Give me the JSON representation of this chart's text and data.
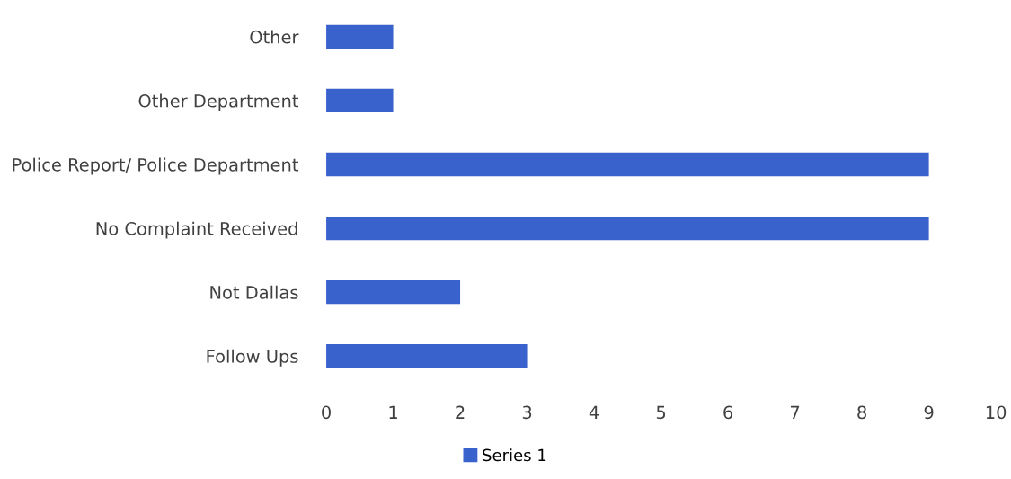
{
  "chart_data": {
    "type": "bar",
    "orientation": "horizontal",
    "categories": [
      "Other",
      "Other Department",
      "Police Report/ Police Department",
      "No Complaint Received",
      "Not Dallas",
      "Follow Ups"
    ],
    "series": [
      {
        "name": "Series 1",
        "color": "#3a62cc",
        "values": [
          1,
          1,
          9,
          9,
          2,
          3
        ]
      }
    ],
    "xlim": [
      0,
      10
    ],
    "xticks": [
      0,
      1,
      2,
      3,
      4,
      5,
      6,
      7,
      8,
      9,
      10
    ],
    "legend": "bottom"
  }
}
